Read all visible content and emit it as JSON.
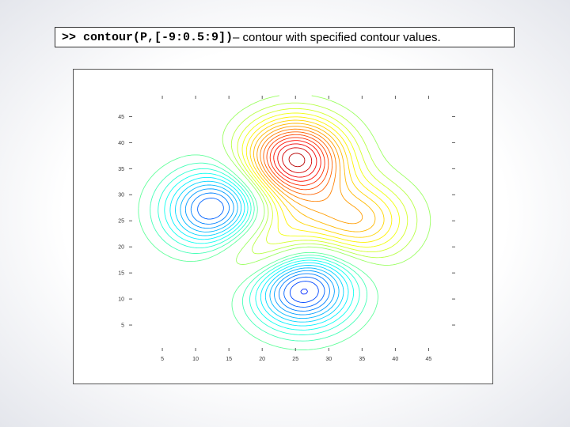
{
  "caption": {
    "code": ">> contour(P,[-9:0.5:9])",
    "description": " – contour with specified contour values."
  },
  "chart_data": {
    "type": "contour",
    "title": "",
    "xlabel": "",
    "ylabel": "",
    "xlim": [
      0,
      49
    ],
    "ylim": [
      0,
      49
    ],
    "xticks": [
      5,
      10,
      15,
      20,
      25,
      30,
      35,
      40,
      45
    ],
    "yticks": [
      5,
      10,
      15,
      20,
      25,
      30,
      35,
      40,
      45
    ],
    "contour_levels": {
      "start": -9,
      "step": 0.5,
      "stop": 9
    },
    "colormap": "jet",
    "grid": false,
    "peaks": [
      {
        "x": 25,
        "y": 37,
        "value": 8.0
      },
      {
        "x": 35,
        "y": 25,
        "value": 3.5
      },
      {
        "x": 20,
        "y": 20,
        "value": 3.0
      },
      {
        "x": 27,
        "y": 27,
        "value": 1.5
      },
      {
        "x": 13,
        "y": 27,
        "value": -6.0
      },
      {
        "x": 26,
        "y": 12,
        "value": -6.5
      }
    ]
  }
}
